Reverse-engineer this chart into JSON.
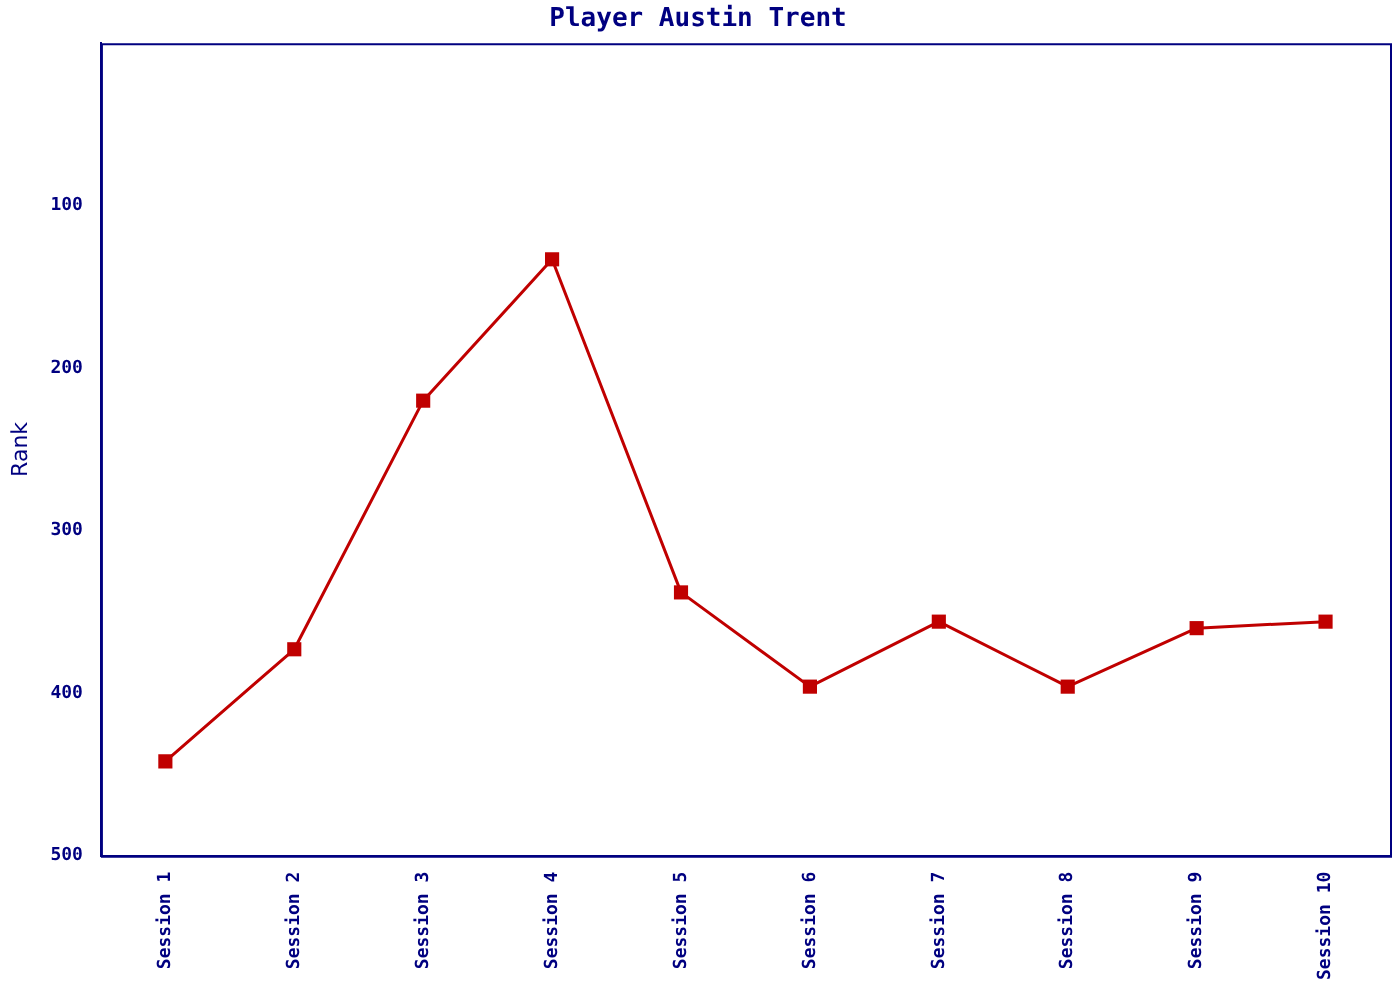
{
  "chart_data": {
    "type": "line",
    "title": "Player Austin Trent",
    "ylabel": "Rank",
    "categories": [
      "Session 1",
      "Session 2",
      "Session 3",
      "Session 4",
      "Session 5",
      "Session 6",
      "Session 7",
      "Session 8",
      "Session 9",
      "Session 10"
    ],
    "series": [
      {
        "color": "#c00000",
        "values": [
          442,
          373,
          220,
          133,
          338,
          396,
          356,
          396,
          360,
          356
        ]
      }
    ],
    "ylim": [
      500,
      0
    ],
    "yticks": [
      100,
      200,
      300,
      400,
      500
    ],
    "grid": false,
    "legend": false,
    "marker": "square",
    "line_style": "solid"
  }
}
